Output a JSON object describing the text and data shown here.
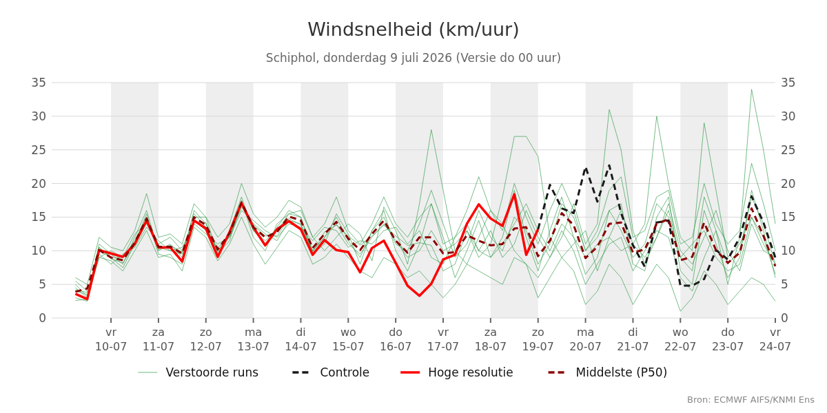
{
  "chart_data": {
    "type": "line",
    "title": "Windsnelheid (km/uur)",
    "subtitle": "Schiphol, donderdag  9 juli 2026 (Versie do 00 uur)",
    "annotations": [
      "Bron: ECMWF AIFS/KNMI Ens"
    ],
    "x": [
      "2026-07-09T06:00",
      "2026-07-09T12:00",
      "2026-07-09T18:00",
      "2026-07-10T00:00",
      "2026-07-10T06:00",
      "2026-07-10T12:00",
      "2026-07-10T18:00",
      "2026-07-11T00:00",
      "2026-07-11T06:00",
      "2026-07-11T12:00",
      "2026-07-11T18:00",
      "2026-07-12T00:00",
      "2026-07-12T06:00",
      "2026-07-12T12:00",
      "2026-07-12T18:00",
      "2026-07-13T00:00",
      "2026-07-13T06:00",
      "2026-07-13T12:00",
      "2026-07-13T18:00",
      "2026-07-14T00:00",
      "2026-07-14T06:00",
      "2026-07-14T12:00",
      "2026-07-14T18:00",
      "2026-07-15T00:00",
      "2026-07-15T06:00",
      "2026-07-15T12:00",
      "2026-07-15T18:00",
      "2026-07-16T00:00",
      "2026-07-16T06:00",
      "2026-07-16T12:00",
      "2026-07-16T18:00",
      "2026-07-17T00:00",
      "2026-07-17T06:00",
      "2026-07-17T12:00",
      "2026-07-17T18:00",
      "2026-07-18T00:00",
      "2026-07-18T06:00",
      "2026-07-18T12:00",
      "2026-07-18T18:00",
      "2026-07-19T00:00",
      "2026-07-19T06:00",
      "2026-07-19T12:00",
      "2026-07-19T18:00",
      "2026-07-20T00:00",
      "2026-07-20T06:00",
      "2026-07-20T12:00",
      "2026-07-20T18:00",
      "2026-07-21T00:00",
      "2026-07-21T06:00",
      "2026-07-21T12:00",
      "2026-07-21T18:00",
      "2026-07-22T00:00",
      "2026-07-22T06:00",
      "2026-07-22T12:00",
      "2026-07-22T18:00",
      "2026-07-23T00:00",
      "2026-07-23T06:00",
      "2026-07-23T12:00",
      "2026-07-23T18:00",
      "2026-07-24T00:00"
    ],
    "xlim": [
      "2026-07-08T18:00",
      "2026-07-24T00:00"
    ],
    "xticks": [
      {
        "value": "2026-07-10",
        "label": "vr\n10-07"
      },
      {
        "value": "2026-07-11",
        "label": "za\n11-07"
      },
      {
        "value": "2026-07-12",
        "label": "zo\n12-07"
      },
      {
        "value": "2026-07-13",
        "label": "ma\n13-07"
      },
      {
        "value": "2026-07-14",
        "label": "di\n14-07"
      },
      {
        "value": "2026-07-15",
        "label": "wo\n15-07"
      },
      {
        "value": "2026-07-16",
        "label": "do\n16-07"
      },
      {
        "value": "2026-07-17",
        "label": "vr\n17-07"
      },
      {
        "value": "2026-07-18",
        "label": "za\n18-07"
      },
      {
        "value": "2026-07-19",
        "label": "zo\n19-07"
      },
      {
        "value": "2026-07-20",
        "label": "ma\n20-07"
      },
      {
        "value": "2026-07-21",
        "label": "di\n21-07"
      },
      {
        "value": "2026-07-22",
        "label": "wo\n22-07"
      },
      {
        "value": "2026-07-23",
        "label": "do\n23-07"
      },
      {
        "value": "2026-07-24",
        "label": "vr\n24-07"
      }
    ],
    "ylim": [
      0,
      35
    ],
    "yticks": [
      0,
      5,
      10,
      15,
      20,
      25,
      30,
      35
    ],
    "y2lim": [
      0,
      35
    ],
    "y2ticks": [
      0,
      5,
      10,
      15,
      20,
      25,
      30,
      35
    ],
    "grid": "y",
    "legend": "bottom",
    "marker": "none",
    "bands": [
      {
        "axis": "x",
        "from": "2026-07-10",
        "to": "2026-07-11",
        "color": "#eeeeee"
      },
      {
        "axis": "x",
        "from": "2026-07-12",
        "to": "2026-07-13",
        "color": "#eeeeee"
      },
      {
        "axis": "x",
        "from": "2026-07-14",
        "to": "2026-07-15",
        "color": "#eeeeee"
      },
      {
        "axis": "x",
        "from": "2026-07-16",
        "to": "2026-07-17",
        "color": "#eeeeee"
      },
      {
        "axis": "x",
        "from": "2026-07-18",
        "to": "2026-07-19",
        "color": "#eeeeee"
      },
      {
        "axis": "x",
        "from": "2026-07-20",
        "to": "2026-07-21",
        "color": "#eeeeee"
      },
      {
        "axis": "x",
        "from": "2026-07-22",
        "to": "2026-07-23",
        "color": "#eeeeee"
      }
    ],
    "series": [
      {
        "name": "Verstoorde runs",
        "color": "#2e9a46",
        "line_style": "solid",
        "values": [
          4.5,
          3.0,
          11.0,
          9.5,
          8.0,
          12.0,
          16.0,
          10.0,
          11.0,
          9.0,
          16.0,
          14.0,
          9.0,
          13.0,
          18.0,
          13.0,
          11.0,
          13.5,
          16.0,
          15.0,
          9.5,
          11.0,
          15.5,
          12.5,
          8.0,
          13.0,
          16.0,
          10.0,
          7.0,
          11.0,
          17.0,
          12.0,
          6.0,
          10.0,
          14.5,
          9.0,
          12.0,
          19.0,
          12.0,
          7.0,
          13.0,
          18.0,
          12.0,
          6.5,
          9.0,
          16.0,
          17.0,
          8.0,
          7.0,
          15.0,
          18.0,
          7.0,
          5.0,
          16.0,
          11.0,
          6.0,
          9.0,
          19.0,
          13.0,
          6.0
        ]
      },
      {
        "color": "#2e9a46",
        "line_style": "solid",
        "values": [
          5.5,
          4.0,
          9.5,
          8.0,
          9.5,
          10.5,
          13.5,
          11.5,
          10.0,
          10.5,
          14.0,
          12.5,
          11.0,
          12.0,
          16.0,
          14.5,
          13.0,
          12.0,
          14.0,
          13.5,
          11.5,
          13.5,
          13.0,
          10.5,
          11.5,
          11.0,
          13.0,
          13.5,
          11.0,
          13.0,
          9.0,
          8.0,
          12.0,
          14.0,
          10.0,
          13.0,
          9.0,
          11.0,
          16.0,
          12.0,
          9.0,
          12.0,
          17.0,
          11.0,
          14.0,
          31.0,
          25.0,
          13.0,
          8.0,
          12.0,
          17.0,
          10.0,
          8.0,
          12.0,
          16.0,
          10.0,
          7.0,
          14.0,
          10.0,
          9.0
        ]
      },
      {
        "color": "#2e9a46",
        "line_style": "solid",
        "values": [
          3.0,
          2.5,
          10.5,
          9.0,
          7.5,
          11.0,
          15.5,
          9.5,
          9.0,
          8.0,
          15.0,
          15.0,
          9.5,
          11.5,
          17.5,
          12.0,
          10.0,
          14.0,
          15.5,
          16.0,
          12.0,
          10.0,
          12.0,
          14.0,
          12.5,
          8.5,
          16.5,
          13.0,
          8.0,
          17.0,
          28.0,
          19.0,
          10.0,
          8.0,
          12.0,
          16.0,
          14.0,
          10.0,
          8.0,
          6.0,
          9.0,
          13.0,
          10.0,
          5.0,
          8.0,
          11.0,
          12.0,
          7.0,
          10.0,
          13.0,
          12.0,
          6.0,
          4.0,
          9.0,
          13.0,
          5.0,
          12.0,
          34.0,
          25.0,
          14.0
        ]
      },
      {
        "color": "#2e9a46",
        "line_style": "solid",
        "values": [
          4.0,
          3.5,
          9.0,
          10.0,
          9.0,
          12.5,
          14.0,
          11.0,
          12.0,
          10.0,
          14.5,
          13.0,
          10.5,
          12.0,
          16.5,
          14.0,
          12.5,
          11.5,
          14.5,
          14.0,
          10.0,
          12.0,
          14.0,
          11.0,
          9.5,
          12.0,
          14.0,
          11.5,
          9.0,
          10.0,
          13.0,
          10.0,
          11.0,
          13.0,
          9.0,
          11.0,
          18.0,
          27.0,
          27.0,
          24.0,
          12.0,
          9.0,
          11.0,
          13.0,
          7.0,
          12.0,
          10.0,
          11.0,
          14.0,
          30.0,
          20.0,
          12.0,
          10.0,
          29.0,
          19.0,
          9.0,
          11.0,
          15.0,
          11.0,
          8.0
        ]
      },
      {
        "color": "#2e9a46",
        "line_style": "solid",
        "values": [
          2.6,
          2.8,
          9.0,
          8.5,
          7.0,
          10.0,
          13.0,
          9.0,
          9.5,
          7.0,
          13.5,
          12.0,
          8.5,
          11.0,
          15.0,
          11.0,
          8.0,
          10.5,
          13.0,
          12.0,
          8.0,
          9.0,
          11.0,
          9.0,
          7.0,
          6.0,
          9.0,
          8.0,
          6.0,
          7.0,
          5.0,
          3.0,
          5.0,
          8.0,
          7.0,
          6.0,
          5.0,
          9.0,
          8.0,
          3.0,
          6.0,
          9.0,
          7.0,
          2.0,
          4.0,
          8.0,
          6.0,
          2.0,
          5.0,
          8.0,
          6.0,
          1.0,
          3.0,
          7.0,
          5.0,
          2.0,
          4.0,
          6.0,
          5.0,
          2.5
        ]
      },
      {
        "color": "#2e9a46",
        "line_style": "solid",
        "values": [
          6.0,
          5.0,
          12.0,
          10.5,
          10.0,
          13.0,
          18.5,
          12.0,
          12.5,
          11.0,
          17.0,
          15.0,
          12.0,
          14.0,
          20.0,
          15.5,
          13.5,
          15.0,
          17.5,
          16.5,
          12.0,
          14.0,
          18.0,
          13.0,
          11.0,
          14.0,
          18.0,
          14.0,
          12.0,
          15.0,
          17.0,
          11.0,
          12.0,
          16.0,
          21.0,
          16.0,
          13.0,
          20.0,
          15.0,
          11.0,
          16.0,
          20.0,
          16.0,
          10.0,
          13.0,
          19.0,
          21.0,
          12.0,
          13.0,
          18.0,
          19.0,
          11.0,
          12.0,
          20.0,
          14.0,
          11.0,
          13.0,
          23.0,
          17.0,
          10.0
        ]
      },
      {
        "color": "#2e9a46",
        "line_style": "solid",
        "values": [
          4.2,
          3.8,
          10.0,
          9.0,
          9.0,
          11.5,
          15.0,
          10.5,
          10.0,
          9.5,
          15.5,
          13.5,
          10.0,
          12.5,
          17.0,
          13.0,
          11.5,
          13.0,
          15.5,
          15.0,
          10.0,
          12.0,
          15.0,
          11.5,
          9.0,
          13.0,
          15.0,
          11.0,
          10.0,
          14.0,
          19.0,
          14.0,
          9.0,
          11.0,
          16.0,
          12.0,
          10.0,
          15.0,
          13.0,
          8.0,
          11.0,
          17.0,
          15.0,
          10.0,
          12.0,
          16.0,
          13.0,
          9.0,
          11.0,
          17.0,
          15.0,
          9.0,
          7.0,
          18.0,
          13.0,
          8.0,
          10.0,
          18.0,
          14.0,
          8.0
        ]
      },
      {
        "color": "#2e9a46",
        "line_style": "solid",
        "values": [
          5.0,
          3.2,
          10.5,
          8.8,
          8.2,
          10.8,
          14.2,
          10.2,
          10.8,
          9.8,
          14.2,
          14.2,
          9.8,
          12.2,
          16.8,
          13.8,
          12.2,
          12.2,
          14.8,
          13.8,
          9.8,
          12.8,
          13.8,
          12.2,
          10.8,
          12.2,
          13.8,
          12.2,
          10.8,
          11.2,
          10.8,
          7.0,
          8.0,
          13.0,
          10.0,
          9.0,
          11.0,
          14.0,
          17.0,
          13.0,
          10.0,
          14.0,
          12.0,
          9.0,
          11.0,
          12.0,
          16.0,
          11.0,
          9.0,
          12.0,
          16.0,
          9.0,
          11.0,
          13.0,
          9.0,
          7.0,
          8.0,
          15.0,
          12.0,
          6.5
        ]
      },
      {
        "name": "Controle",
        "color": "#1a1a1a",
        "line_style": "dashed",
        "values": [
          null,
          null,
          null,
          null,
          null,
          null,
          null,
          null,
          null,
          null,
          null,
          null,
          null,
          null,
          null,
          null,
          null,
          null,
          null,
          null,
          null,
          null,
          null,
          null,
          null,
          null,
          null,
          null,
          null,
          null,
          null,
          null,
          null,
          null,
          null,
          null,
          null,
          null,
          null,
          13.2,
          19.8,
          16.3,
          15.6,
          22.5,
          17.3,
          22.7,
          15.6,
          10.8,
          7.6,
          14.2,
          14.5,
          4.8,
          4.8,
          5.8,
          10.1,
          8.7,
          12.0,
          18.1,
          14.2,
          9.0
        ]
      },
      {
        "name": "Hoge resolutie",
        "color": "#ff0000",
        "line_style": "solid",
        "values": [
          3.6,
          2.8,
          10.1,
          9.6,
          9.1,
          11.0,
          14.5,
          10.5,
          10.5,
          8.4,
          14.5,
          13.3,
          9.1,
          12.8,
          17.1,
          13.5,
          10.8,
          13.2,
          14.4,
          13.2,
          9.4,
          11.6,
          10.1,
          9.8,
          6.8,
          10.4,
          11.5,
          8.2,
          4.8,
          3.3,
          5.1,
          8.7,
          9.4,
          14.0,
          16.9,
          14.8,
          13.7,
          18.4,
          9.4,
          13.2,
          null,
          null,
          null,
          null,
          null,
          null,
          null,
          null,
          null,
          null,
          null,
          null,
          null,
          null,
          null,
          null,
          null,
          null,
          null,
          null
        ]
      },
      {
        "name": "Middelste (P50)",
        "color": "#8b0000",
        "line_style": "dashed",
        "values": [
          3.9,
          4.4,
          10.1,
          9.0,
          8.6,
          11.2,
          14.8,
          10.6,
          10.6,
          9.6,
          15.0,
          13.8,
          10.2,
          12.6,
          17.2,
          13.5,
          12.0,
          12.8,
          15.1,
          14.5,
          10.4,
          12.5,
          14.3,
          11.8,
          10.1,
          12.5,
          14.5,
          11.5,
          9.7,
          12.0,
          12.0,
          9.6,
          9.8,
          12.3,
          11.5,
          10.8,
          11.0,
          13.3,
          13.5,
          9.2,
          11.5,
          15.6,
          13.8,
          8.9,
          10.6,
          14.0,
          14.2,
          9.7,
          10.2,
          14.0,
          14.7,
          8.6,
          9.1,
          14.2,
          10.1,
          8.2,
          9.7,
          16.3,
          12.2,
          7.7
        ]
      }
    ]
  }
}
